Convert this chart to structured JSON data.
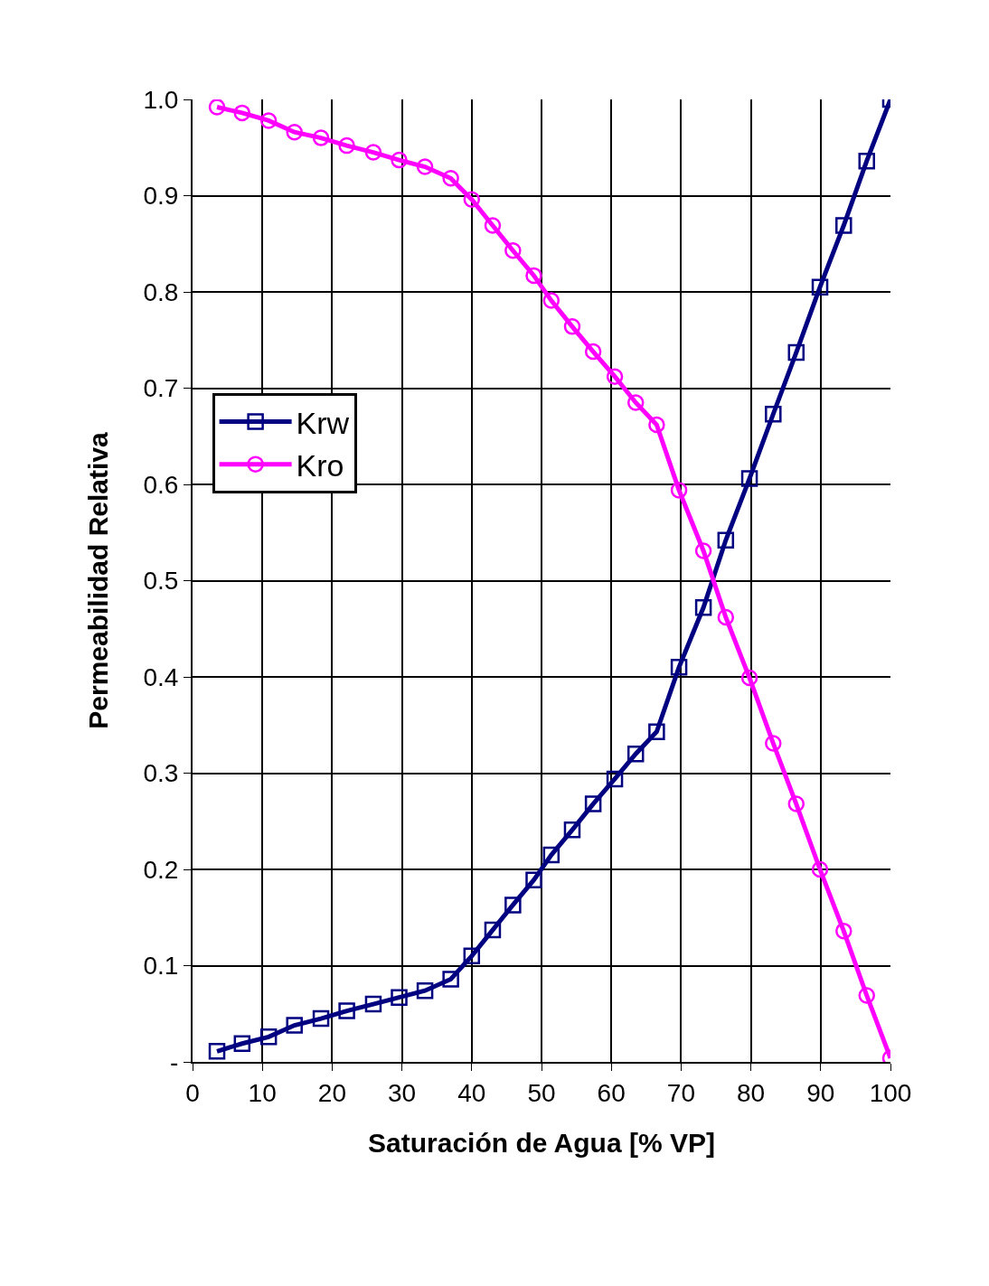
{
  "chart_data": {
    "type": "line",
    "xlabel": "Saturación de Agua [% VP]",
    "ylabel": "Permeabilidad Relativa",
    "xlim": [
      0,
      100
    ],
    "xticks": [
      0,
      10,
      20,
      30,
      40,
      50,
      60,
      70,
      80,
      90,
      100
    ],
    "ylim": [
      0,
      1
    ],
    "yticks": [
      {
        "value": 0,
        "label": "-"
      },
      {
        "value": 0.1,
        "label": "0.1"
      },
      {
        "value": 0.2,
        "label": "0.2"
      },
      {
        "value": 0.3,
        "label": "0.3"
      },
      {
        "value": 0.4,
        "label": "0.4"
      },
      {
        "value": 0.5,
        "label": "0.5"
      },
      {
        "value": 0.6,
        "label": "0.6"
      },
      {
        "value": 0.7,
        "label": "0.7"
      },
      {
        "value": 0.8,
        "label": "0.8"
      },
      {
        "value": 0.9,
        "label": "0.9"
      },
      {
        "value": 1,
        "label": "1.0"
      }
    ],
    "grid": true,
    "legend": "left",
    "line_style": "solid",
    "series": [
      {
        "name": "Krw",
        "color": "#000080",
        "marker": "square",
        "x": [
          3.5,
          7.1,
          10.9,
          14.6,
          18.4,
          22.1,
          25.9,
          29.6,
          33.3,
          37.0,
          40.0,
          43.0,
          45.9,
          48.9,
          51.4,
          54.4,
          57.4,
          60.5,
          63.5,
          66.5,
          69.7,
          73.2,
          76.4,
          79.8,
          83.2,
          86.5,
          89.9,
          93.3,
          96.6,
          100
        ],
        "values": [
          0.011,
          0.019,
          0.026,
          0.038,
          0.045,
          0.053,
          0.06,
          0.067,
          0.074,
          0.086,
          0.11,
          0.137,
          0.163,
          0.189,
          0.215,
          0.241,
          0.268,
          0.294,
          0.32,
          0.343,
          0.41,
          0.472,
          0.542,
          0.606,
          0.673,
          0.737,
          0.805,
          0.869,
          0.936,
          1.0
        ]
      },
      {
        "name": "Kro",
        "color": "#ff00ff",
        "marker": "circle",
        "x": [
          3.5,
          7.1,
          10.9,
          14.6,
          18.4,
          22.1,
          25.9,
          29.6,
          33.3,
          37.0,
          40.0,
          43.0,
          45.9,
          48.9,
          51.4,
          54.4,
          57.4,
          60.5,
          63.5,
          66.5,
          69.7,
          73.2,
          76.4,
          79.8,
          83.2,
          86.5,
          89.9,
          93.3,
          96.6,
          100
        ],
        "values": [
          0.992,
          0.986,
          0.978,
          0.966,
          0.96,
          0.952,
          0.945,
          0.937,
          0.93,
          0.918,
          0.896,
          0.869,
          0.843,
          0.817,
          0.791,
          0.764,
          0.738,
          0.712,
          0.685,
          0.662,
          0.594,
          0.531,
          0.462,
          0.399,
          0.331,
          0.268,
          0.2,
          0.136,
          0.069,
          0.004
        ]
      }
    ]
  }
}
